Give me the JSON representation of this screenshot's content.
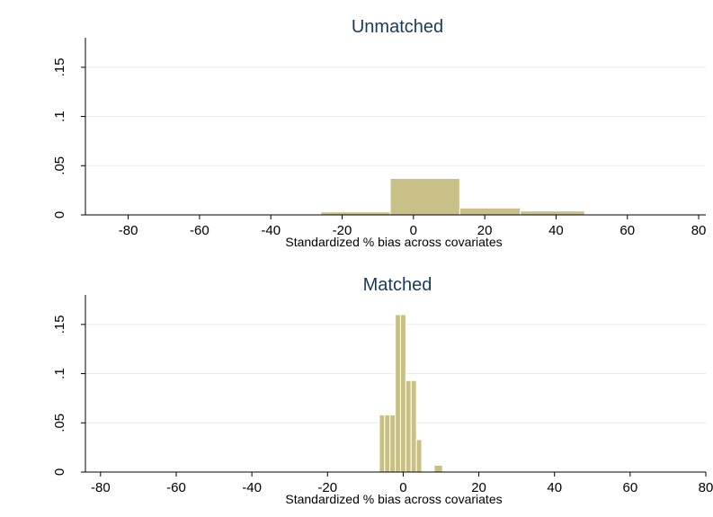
{
  "colors": {
    "bar": "#c9c088",
    "grid": "#e6ecee",
    "title": "#1a3a5c"
  },
  "chart_data": [
    {
      "type": "bar",
      "title": "Unmatched",
      "xlabel": "Standardized % bias across covariates",
      "ylabel": "",
      "xlim": [
        -92,
        82
      ],
      "ylim": [
        0,
        0.18
      ],
      "x_ticks": [
        -80,
        -60,
        -40,
        -20,
        0,
        20,
        40,
        60,
        80
      ],
      "x_tick_labels": [
        "-80",
        "-60",
        "-40",
        "-20",
        "0",
        "20",
        "40",
        "60",
        "80"
      ],
      "y_ticks": [
        0,
        0.05,
        0.1,
        0.15
      ],
      "y_tick_labels": [
        "0",
        ".05",
        ".1",
        ".15"
      ],
      "grid": true,
      "bins": [
        {
          "x0": -80,
          "x1": -62,
          "value": 0.0008
        },
        {
          "x0": -44,
          "x1": -26,
          "value": 0.0008
        },
        {
          "x0": -26,
          "x1": -6.5,
          "value": 0.003
        },
        {
          "x0": -6.5,
          "x1": 13,
          "value": 0.037
        },
        {
          "x0": 13,
          "x1": 30,
          "value": 0.007
        },
        {
          "x0": 30,
          "x1": 48,
          "value": 0.004
        }
      ]
    },
    {
      "type": "bar",
      "title": "Matched",
      "xlabel": "Standardized % bias across covariates",
      "ylabel": "",
      "xlim": [
        -84,
        80
      ],
      "ylim": [
        0,
        0.18
      ],
      "x_ticks": [
        -80,
        -60,
        -40,
        -20,
        0,
        20,
        40,
        60,
        80
      ],
      "x_tick_labels": [
        "-80",
        "-60",
        "-40",
        "-20",
        "0",
        "20",
        "40",
        "60",
        "80"
      ],
      "y_ticks": [
        0,
        0.05,
        0.1,
        0.15
      ],
      "y_tick_labels": [
        "0",
        ".05",
        ".1",
        ".15"
      ],
      "grid": true,
      "bins": [
        {
          "x0": -6.3,
          "x1": -4.9,
          "value": 0.058
        },
        {
          "x0": -4.9,
          "x1": -3.5,
          "value": 0.058
        },
        {
          "x0": -3.5,
          "x1": -2.1,
          "value": 0.058
        },
        {
          "x0": -2.1,
          "x1": -0.7,
          "value": 0.16
        },
        {
          "x0": -0.7,
          "x1": 0.7,
          "value": 0.16
        },
        {
          "x0": 0.7,
          "x1": 2.1,
          "value": 0.093
        },
        {
          "x0": 2.1,
          "x1": 3.5,
          "value": 0.093
        },
        {
          "x0": 3.5,
          "x1": 4.9,
          "value": 0.033
        },
        {
          "x0": 8.2,
          "x1": 10.4,
          "value": 0.007
        }
      ]
    }
  ]
}
